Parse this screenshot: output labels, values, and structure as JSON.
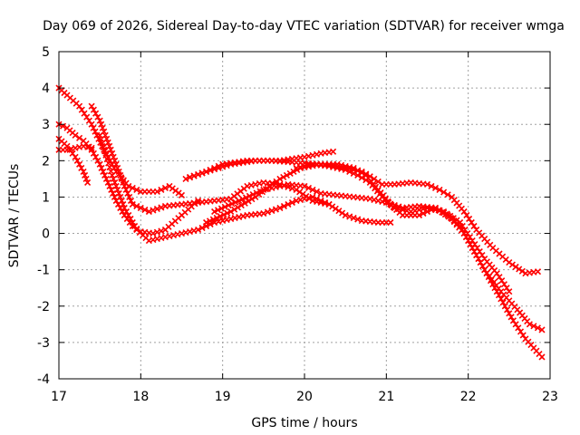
{
  "chart_data": {
    "type": "scatter",
    "title": "Day 069 of 2026, Sidereal Day-to-day VTEC variation (SDTVAR) for receiver wmga",
    "xlabel": "GPS time / hours",
    "ylabel": "SDTVAR / TECUs",
    "xlim": [
      17,
      23
    ],
    "ylim": [
      -4,
      5
    ],
    "grid": true,
    "x_ticks": [
      "17",
      "18",
      "19",
      "20",
      "21",
      "22",
      "23"
    ],
    "y_ticks": [
      "5",
      "4",
      "3",
      "2",
      "1",
      "0",
      "-1",
      "-2",
      "-3",
      "-4"
    ],
    "marker": "cross",
    "series_color": "#ff0000",
    "series": [
      {
        "name": "s1",
        "x": [
          17.0,
          17.1,
          17.25,
          17.4,
          17.55,
          17.7,
          17.85,
          18.0,
          18.2,
          18.35,
          18.5
        ],
        "y": [
          4.0,
          3.8,
          3.5,
          3.0,
          2.3,
          1.7,
          1.3,
          1.15,
          1.15,
          1.3,
          1.05
        ]
      },
      {
        "name": "s2",
        "x": [
          17.0,
          17.1,
          17.2,
          17.3,
          17.4,
          17.5,
          17.6,
          17.7,
          17.8,
          17.9,
          18.0,
          18.15,
          18.3,
          18.5,
          18.7
        ],
        "y": [
          3.0,
          2.9,
          2.7,
          2.55,
          2.3,
          1.9,
          1.4,
          0.9,
          0.5,
          0.2,
          0.05,
          0.0,
          0.1,
          0.5,
          0.9
        ]
      },
      {
        "name": "s3",
        "x": [
          17.0,
          17.1,
          17.2,
          17.3,
          17.35
        ],
        "y": [
          2.6,
          2.4,
          2.1,
          1.7,
          1.4
        ]
      },
      {
        "name": "s4",
        "x": [
          17.0,
          17.1,
          17.2,
          17.3,
          17.4
        ],
        "y": [
          2.3,
          2.3,
          2.35,
          2.4,
          2.35
        ]
      },
      {
        "name": "s5",
        "x": [
          17.4,
          17.5,
          17.6,
          17.7,
          17.8,
          17.9,
          18.0,
          18.1,
          18.3,
          18.5,
          18.7,
          18.9,
          19.1,
          19.3,
          19.5,
          19.7,
          19.9,
          20.1,
          20.3
        ],
        "y": [
          3.5,
          3.1,
          2.5,
          1.9,
          1.3,
          0.8,
          0.7,
          0.6,
          0.75,
          0.8,
          0.85,
          0.9,
          0.95,
          1.3,
          1.4,
          1.35,
          1.2,
          0.9,
          0.8
        ]
      },
      {
        "name": "s6",
        "x": [
          17.5,
          17.65,
          17.8,
          17.95,
          18.1,
          18.3,
          18.5,
          18.7,
          18.9,
          19.1,
          19.3,
          19.5,
          19.7,
          19.9,
          20.1,
          20.3,
          20.5,
          20.7,
          20.9,
          21.05
        ],
        "y": [
          2.7,
          1.6,
          0.7,
          0.1,
          -0.2,
          -0.1,
          0.0,
          0.1,
          0.3,
          0.4,
          0.5,
          0.55,
          0.7,
          0.9,
          1.0,
          0.8,
          0.5,
          0.35,
          0.3,
          0.3
        ]
      },
      {
        "name": "s7",
        "x": [
          18.55,
          18.8,
          19.1,
          19.4,
          19.7,
          20.0,
          20.2,
          20.35
        ],
        "y": [
          1.5,
          1.7,
          1.9,
          2.0,
          2.0,
          2.1,
          2.2,
          2.25
        ]
      },
      {
        "name": "s8",
        "x": [
          18.6,
          18.8,
          19.0,
          19.3,
          19.6,
          19.9,
          20.2,
          20.5,
          20.7,
          20.85,
          20.95,
          21.1,
          21.3,
          21.5,
          21.65,
          21.8,
          21.95,
          22.1,
          22.3,
          22.5,
          22.7,
          22.85
        ],
        "y": [
          1.55,
          1.7,
          1.9,
          2.0,
          2.0,
          1.95,
          1.9,
          1.8,
          1.7,
          1.5,
          1.35,
          1.35,
          1.4,
          1.35,
          1.2,
          1.0,
          0.6,
          0.1,
          -0.4,
          -0.8,
          -1.1,
          -1.05
        ]
      },
      {
        "name": "s9",
        "x": [
          18.8,
          19.1,
          19.4,
          19.7,
          19.95,
          20.2,
          20.4,
          20.6,
          20.75,
          20.9,
          21.05,
          21.2,
          21.4,
          21.6,
          21.75,
          21.9,
          22.05,
          22.2,
          22.4,
          22.6,
          22.75,
          22.9
        ],
        "y": [
          0.3,
          0.6,
          1.0,
          1.5,
          1.8,
          1.9,
          1.9,
          1.8,
          1.6,
          1.2,
          0.8,
          0.5,
          0.5,
          0.7,
          0.5,
          0.2,
          -0.4,
          -1.0,
          -1.6,
          -2.1,
          -2.5,
          -2.65
        ]
      },
      {
        "name": "s10",
        "x": [
          19.9,
          20.1,
          20.3,
          20.5,
          20.65,
          20.8,
          20.95,
          21.1,
          21.3,
          21.5,
          21.7,
          21.9,
          22.05,
          22.2,
          22.35,
          22.5
        ],
        "y": [
          1.8,
          1.9,
          1.85,
          1.75,
          1.6,
          1.4,
          1.0,
          0.7,
          0.6,
          0.7,
          0.6,
          0.3,
          -0.2,
          -0.7,
          -1.1,
          -1.6
        ]
      },
      {
        "name": "s11",
        "x": [
          18.9,
          19.2,
          19.5,
          19.8,
          20.0,
          20.2,
          20.4,
          20.6,
          20.8,
          21.0,
          21.2,
          21.4,
          21.6,
          21.8,
          21.95,
          22.1,
          22.25,
          22.4,
          22.55,
          22.7,
          22.9
        ],
        "y": [
          0.6,
          0.9,
          1.2,
          1.35,
          1.3,
          1.1,
          1.05,
          1.0,
          0.95,
          0.85,
          0.7,
          0.75,
          0.7,
          0.4,
          0.0,
          -0.6,
          -1.2,
          -1.8,
          -2.4,
          -2.9,
          -3.4
        ]
      }
    ]
  }
}
